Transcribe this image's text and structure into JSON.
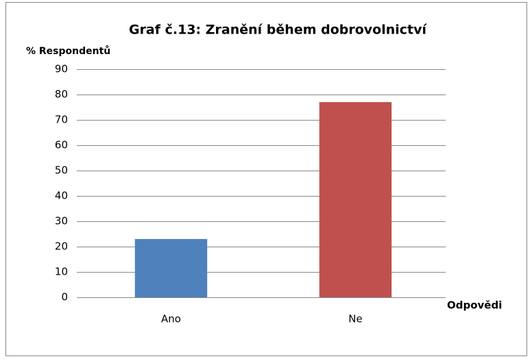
{
  "chart_data": {
    "type": "bar",
    "title": "Graf č.13: Zranění během dobrovolnictví",
    "y_label": "% Respondentů",
    "x_label": "Odpovědi",
    "categories": [
      "Ano",
      "Ne"
    ],
    "values": [
      23,
      77
    ],
    "colors": [
      "#4f81bd",
      "#c0504d"
    ],
    "ylim": [
      0,
      90
    ],
    "yticks": [
      0,
      10,
      20,
      30,
      40,
      50,
      60,
      70,
      80,
      90
    ],
    "grid": true
  }
}
